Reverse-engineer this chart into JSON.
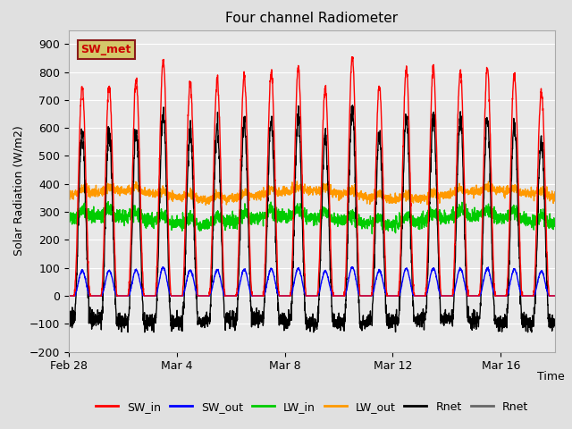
{
  "title": "Four channel Radiometer",
  "xlabel": "Time",
  "ylabel": "Solar Radiation (W/m2)",
  "ylim": [
    -200,
    950
  ],
  "yticks": [
    -200,
    -100,
    0,
    100,
    200,
    300,
    400,
    500,
    600,
    700,
    800,
    900
  ],
  "fig_bg_color": "#e0e0e0",
  "plot_bg_color": "#e8e8e8",
  "annotation_label": "SW_met",
  "annotation_bg": "#d4c86a",
  "annotation_border": "#8b1a1a",
  "series": [
    {
      "label": "SW_in",
      "color": "#ff0000",
      "lw": 1.0
    },
    {
      "label": "SW_out",
      "color": "#0000ff",
      "lw": 1.0
    },
    {
      "label": "LW_in",
      "color": "#00cc00",
      "lw": 1.0
    },
    {
      "label": "LW_out",
      "color": "#ff9900",
      "lw": 1.0
    },
    {
      "label": "Rnet",
      "color": "#000000",
      "lw": 1.0
    },
    {
      "label": "Rnet",
      "color": "#666666",
      "lw": 1.0
    }
  ],
  "xtick_positions": [
    0,
    4,
    8,
    12,
    16
  ],
  "xtick_labels": [
    "Feb 28",
    "Mar 4",
    "Mar 8",
    "Mar 12",
    "Mar 16"
  ],
  "xlim": [
    0,
    18
  ],
  "n_days": 18,
  "pts_per_day": 144,
  "daily_peaks_sw_in": [
    750,
    750,
    770,
    840,
    760,
    770,
    785,
    800,
    815,
    740,
    850,
    750,
    810,
    810,
    805,
    815,
    790,
    730
  ],
  "lw_in_base": 270,
  "lw_out_base": 360,
  "night_rnet": -100,
  "seed": 42
}
